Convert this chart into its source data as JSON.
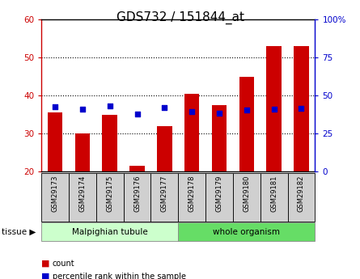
{
  "title": "GDS732 / 151844_at",
  "samples": [
    "GSM29173",
    "GSM29174",
    "GSM29175",
    "GSM29176",
    "GSM29177",
    "GSM29178",
    "GSM29179",
    "GSM29180",
    "GSM29181",
    "GSM29182"
  ],
  "counts": [
    35.5,
    30.0,
    35.0,
    21.5,
    32.0,
    40.5,
    37.5,
    45.0,
    53.0,
    53.0
  ],
  "percentiles": [
    42.5,
    41.0,
    43.0,
    38.0,
    42.0,
    39.5,
    38.5,
    40.5,
    41.0,
    41.5
  ],
  "ylim_left": [
    20,
    60
  ],
  "ylim_right": [
    0,
    100
  ],
  "yticks_left": [
    20,
    30,
    40,
    50,
    60
  ],
  "yticks_right": [
    0,
    25,
    50,
    75,
    100
  ],
  "ytick_labels_right": [
    "0",
    "25",
    "50",
    "75",
    "100%"
  ],
  "bar_color": "#cc0000",
  "dot_color": "#0000cc",
  "bar_bottom": 20,
  "tissue_groups": [
    {
      "label": "Malpighian tubule",
      "start": 0,
      "end": 5,
      "color": "#ccffcc"
    },
    {
      "label": "whole organism",
      "start": 5,
      "end": 10,
      "color": "#66dd66"
    }
  ],
  "legend_items": [
    {
      "label": "count",
      "color": "#cc0000"
    },
    {
      "label": "percentile rank within the sample",
      "color": "#0000cc"
    }
  ],
  "grid_yticks": [
    30,
    40,
    50
  ],
  "title_fontsize": 11,
  "axis_color_left": "#cc0000",
  "axis_color_right": "#0000cc",
  "sample_box_color": "#d0d0d0",
  "spine_color": "#000000"
}
